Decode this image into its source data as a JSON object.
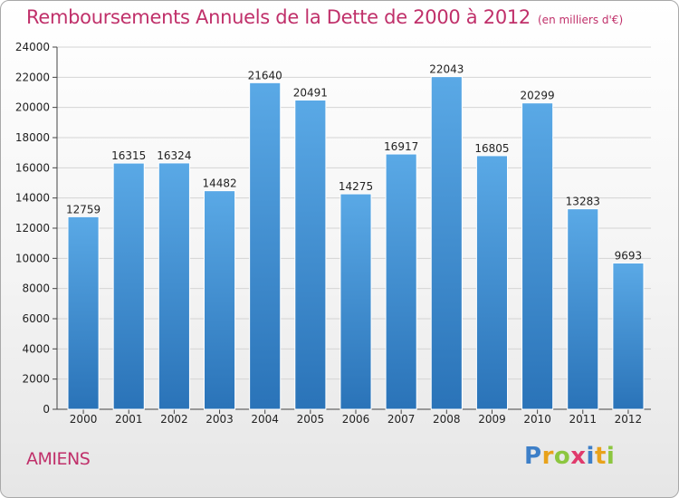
{
  "header": {
    "title": "Remboursements Annuels de la Dette de 2000 à 2012",
    "unit": "(en milliers d'€)"
  },
  "footer": {
    "city": "AMIENS",
    "logo_letters": [
      "P",
      "r",
      "o",
      "x",
      "i",
      "t",
      "i"
    ],
    "logo_colors": [
      "#3d7fc8",
      "#e8a21b",
      "#8cc63f",
      "#e03a6c",
      "#3d7fc8",
      "#e8a21b",
      "#8cc63f"
    ]
  },
  "colors": {
    "bar_top": "#5aa9e6",
    "bar_bottom": "#2a73b8",
    "title": "#c0306a",
    "grid": "#d4d4d4"
  },
  "chart_data": {
    "type": "bar",
    "title": "Remboursements Annuels de la Dette de 2000 à 2012",
    "subtitle": "(en milliers d'€)",
    "xlabel": "",
    "ylabel": "",
    "categories": [
      "2000",
      "2001",
      "2002",
      "2003",
      "2004",
      "2005",
      "2006",
      "2007",
      "2008",
      "2009",
      "2010",
      "2011",
      "2012"
    ],
    "values": [
      12759,
      16315,
      16324,
      14482,
      21640,
      20491,
      14275,
      16917,
      22043,
      16805,
      20299,
      13283,
      9693
    ],
    "ylim": [
      0,
      24000
    ],
    "yticks": [
      0,
      2000,
      4000,
      6000,
      8000,
      10000,
      12000,
      14000,
      16000,
      18000,
      20000,
      22000,
      24000
    ],
    "grid": true,
    "data_labels": true
  }
}
